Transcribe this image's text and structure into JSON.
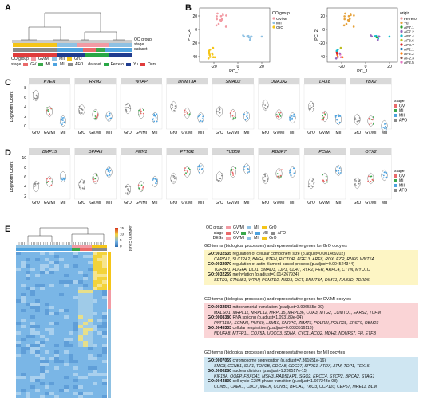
{
  "panels": {
    "A": "A",
    "B": "B",
    "C": "C",
    "D": "D",
    "E": "E"
  },
  "colors": {
    "GV_MI": "#f29aa3",
    "MII": "#8fc1e3",
    "GrO": "#f5c518",
    "GV": "#ea6a6a",
    "MI": "#3aa84a",
    "MII_stage": "#4ea3e0",
    "AFO": "#8a8a8a",
    "Ferrero": "#28a745",
    "Yu": "#1f3c8f",
    "Ours": "#e03c3c",
    "go_yellow": "#fdf5c4",
    "go_pink": "#fad4d6",
    "go_blue": "#cfe6f2"
  },
  "panelA": {
    "legend": {
      "oo_group_label": "OO group",
      "stage_label": "stage",
      "dataset_label": "dataset",
      "oo_items": [
        "GV/MI",
        "MII",
        "GrO"
      ],
      "stage_items": [
        "GV",
        "MI",
        "MII",
        "AFO"
      ],
      "dataset_items": [
        "Ferrero",
        "Yu",
        "Ours"
      ]
    }
  },
  "panelB": {
    "left": {
      "xlabel": "PC_1",
      "ylabel": "PC_2",
      "xticks": [
        "-20",
        "0",
        "20"
      ],
      "yticks": [
        "20",
        "0",
        "-20",
        "-40"
      ],
      "legend_title": "OO group",
      "legend_items": [
        "GV/MI",
        "MII",
        "GrO"
      ]
    },
    "right": {
      "xlabel": "PC_1",
      "ylabel": "PC_2",
      "xticks": [
        "-20",
        "0",
        "20"
      ],
      "yticks": [
        "20",
        "0",
        "-20",
        "-40"
      ],
      "legend_title": "origin",
      "legend_items": [
        "Ferrero",
        "Yu",
        "AF7.1",
        "AF7.2",
        "AF7.4",
        "AF8.6",
        "AF8.7",
        "AF2.1",
        "AF2.2",
        "AF2.3",
        "AF2.5"
      ]
    }
  },
  "panelC": {
    "ylabel": "LogNorm Count",
    "genes": [
      "PTEN",
      "RRM2",
      "WTAP",
      "DNMT3A",
      "SMAD2",
      "DNAJA2",
      "LHX8",
      "YBX2"
    ],
    "xticks": [
      "GrO",
      "GV/MI",
      "MII"
    ],
    "yticks": [
      "8",
      "6",
      "4",
      "2",
      "0"
    ],
    "legend_title": "stage",
    "legend_items": [
      "GV",
      "MI",
      "MII",
      "AFO"
    ]
  },
  "panelD": {
    "ylabel": "LogNorm Count",
    "genes": [
      "BMP15",
      "DPPA5",
      "FMN1",
      "PTTG1",
      "TUBB8",
      "RBBP7",
      "PCNA",
      "OTX2"
    ],
    "xticks": [
      "GrO",
      "GV/MI",
      "MII"
    ],
    "yticks": [
      "10",
      "8",
      "6",
      "4",
      "2"
    ],
    "legend_title": "stage",
    "legend_items": [
      "GV",
      "MI",
      "MII",
      "AFO"
    ]
  },
  "panelE": {
    "legend": {
      "oo_group_label": "OO group",
      "stage_label": "stage",
      "degs_label": "DEGs",
      "oo_items": [
        "GV/MI",
        "MII",
        "GrO"
      ],
      "stage_items": [
        "GV",
        "MI",
        "MII",
        "AFO"
      ],
      "degs_items": [
        "GV/MI",
        "MII",
        "GrO"
      ]
    },
    "colorbar": {
      "title": "LogNorm Count",
      "ticks": [
        "15",
        "10",
        "5",
        "0"
      ]
    },
    "sections": [
      {
        "title": "GO terms (biological processes) and representative genes for GrO oocytes",
        "terms": [
          {
            "id": "GO:0032535",
            "text": " regulation of cellular component size (p.adjust=0.001469202)",
            "genes": "CAPZA1, SLC12A2, BAG4, PTEN, RICTOR, FGF13, ARF6, RDX, EZR, RNF6, WNT5A"
          },
          {
            "id": "GO:0032970",
            "text": " regulation of actin filament-based process (p.adjust=0.004524344)",
            "genes": "TGFBR1, PDGFA, DLJ1, SMAD3, TJP1, CD47, RYR2, FER, ARPC4, CTTN, MYO1C"
          },
          {
            "id": "GO:0032259",
            "text": " methylation (p.adjust=0.014267934)",
            "genes": "SETD3, CTNNB1, WTAP, PCMTD2, NSD3, OGT, DNMT3A, DIMT1, RAB3D, TDRD5"
          }
        ]
      },
      {
        "title": "GO terms (biological processes) and representative genes for GV/MI oocytes",
        "terms": [
          {
            "id": "GO:0032543",
            "text": " mitochondrial translation (p.adjust=3.996555e-09)",
            "genes": "MALSU1, MRPL11, MRPL12, MRPL15, MRPL36, COA3, MTG2, COMTD1, EARS2, TUFM"
          },
          {
            "id": "GO:0008380",
            "text": " RNA splicing (p.adjust=1.093189e-04)",
            "genes": "RNF113A, SCNM1, PUF60, LSM10, SNRPC, ZMAT5, POLR2I, POLR2L, SRSF9, RBM23"
          },
          {
            "id": "GO:0045333",
            "text": " cellular respiration (p.adjust=0.0033516113)",
            "genes": "NDUFA8, MTFR1L, COX5A, UQCC3, SDHA, CYC1, ACO2, MDH2, NDUFS7, FH, ETFB"
          }
        ]
      },
      {
        "title": "GO terms (biological processes) and representative genes for MII oocytes",
        "terms": [
          {
            "id": "GO:0007059",
            "text": " chromosome segregation (p.adjust=7.361651e-16)",
            "genes": "SMC3, CCNB1, SLF1, TOP2B, CDCA8, CDC27, SPRK1, ATRX, ATM, TOP1, TEX15"
          },
          {
            "id": "GO:0000280",
            "text": " nuclear division (p.adjust=1.236517e-15)",
            "genes": "KIF18A, OOEP, FBXO43, MSH3, RAD51AP1, SGO2, ERCC4, SYCP2, BRCA2, STAG1"
          },
          {
            "id": "GO:0044839",
            "text": " cell cycle G2/M phase transition (p.adjust=1.667243e-08)",
            "genes": "CCNB1, CHEK1, CDC7, MELK, CCNB3, BRCA1, TRO3, CCP110, CEP57, MRE11, BLM"
          }
        ]
      }
    ]
  }
}
